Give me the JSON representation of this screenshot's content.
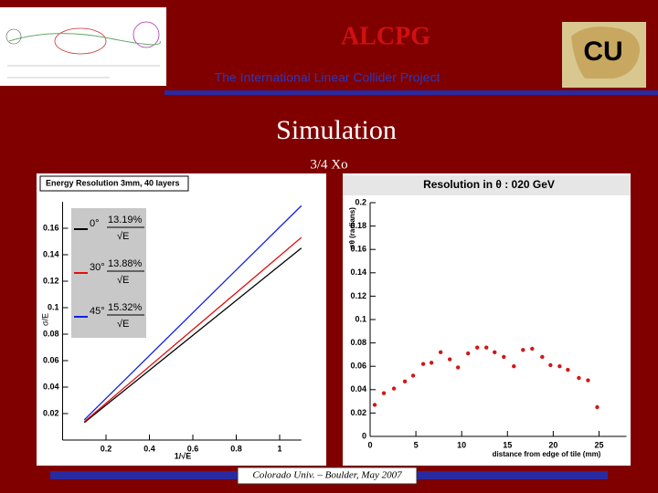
{
  "header": {
    "title": "ALCPG",
    "subtitle": "The International Linear Collider Project",
    "logo": "CU"
  },
  "slide": {
    "title": "Simulation",
    "subtitle": "3/4 Xo"
  },
  "footer": "Colorado Univ. – Boulder, May 2007",
  "chart_data": [
    {
      "type": "line",
      "title": "Energy Resolution 3mm, 40 layers",
      "x_label": "1/√E",
      "y_label": "σ/E",
      "x": [
        0.1,
        1.1
      ],
      "series": [
        {
          "name": "0°",
          "color": "#000000",
          "values": [
            0.0132,
            0.145
          ]
        },
        {
          "name": "30°",
          "color": "#e01010",
          "values": [
            0.0139,
            0.153
          ]
        },
        {
          "name": "45°",
          "color": "#1020e0",
          "values": [
            0.0153,
            0.177
          ]
        }
      ],
      "annotations": [
        "13.19%",
        "13.88%",
        "15.32%"
      ],
      "denominator": "√E",
      "xlim": [
        0,
        1.1
      ],
      "xticks": [
        0.2,
        0.4,
        0.6,
        0.8,
        1
      ],
      "ylim": [
        0,
        0.18
      ],
      "yticks": [
        0.02,
        0.04,
        0.06,
        0.08,
        0.1,
        0.12,
        0.14,
        0.16
      ]
    },
    {
      "type": "scatter",
      "title": "Resolution in θ : 020 GeV",
      "x_label": "distance from edge of tile (mm)",
      "y_label": "σθ (radians)",
      "color": "#d01818",
      "x": [
        0.5,
        1.5,
        2.6,
        3.8,
        4.7,
        5.8,
        6.7,
        7.7,
        8.7,
        9.6,
        10.7,
        11.7,
        12.7,
        13.6,
        14.6,
        15.7,
        16.7,
        17.7,
        18.8,
        19.7,
        20.7,
        21.6,
        22.8,
        23.8,
        24.8
      ],
      "values": [
        0.027,
        0.037,
        0.041,
        0.047,
        0.052,
        0.062,
        0.063,
        0.072,
        0.066,
        0.059,
        0.071,
        0.076,
        0.076,
        0.072,
        0.068,
        0.06,
        0.074,
        0.075,
        0.068,
        0.061,
        0.06,
        0.057,
        0.05,
        0.048,
        0.025
      ],
      "xlim": [
        0,
        28
      ],
      "xticks": [
        0,
        5,
        10,
        15,
        20,
        25
      ],
      "ylim": [
        0,
        0.2
      ],
      "yticks": [
        0,
        0.02,
        0.04,
        0.06,
        0.08,
        0.1,
        0.12,
        0.14,
        0.16,
        0.18,
        0.2
      ]
    }
  ]
}
